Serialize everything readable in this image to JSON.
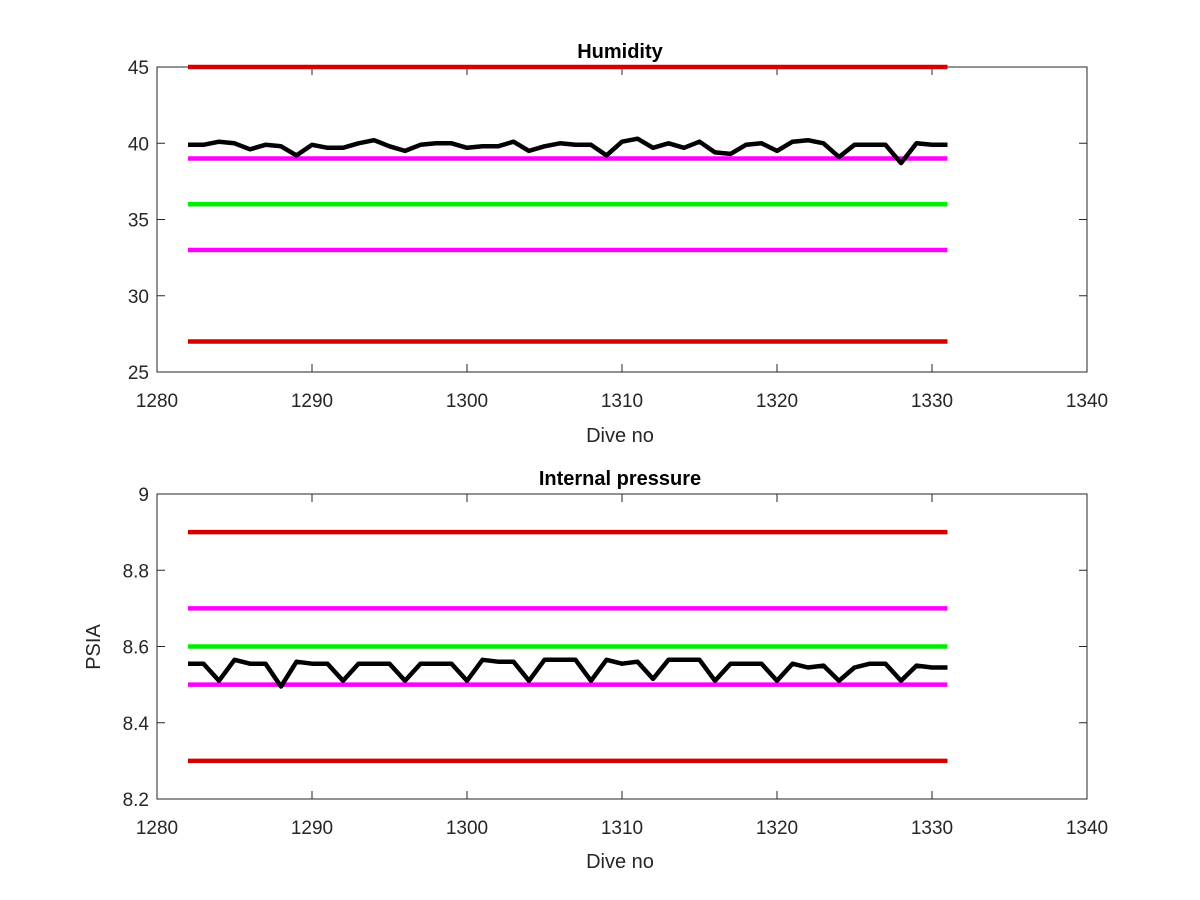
{
  "chart_data": [
    {
      "type": "line",
      "title": "Humidity",
      "xlabel": "Dive no",
      "ylabel": "",
      "xlim": [
        1280,
        1340
      ],
      "ylim": [
        25,
        45
      ],
      "xticks": [
        "1280",
        "1290",
        "1300",
        "1310",
        "1320",
        "1330",
        "1340"
      ],
      "yticks": [
        "25",
        "30",
        "35",
        "40",
        "45"
      ],
      "grid": false,
      "series": [
        {
          "color": "#d40000",
          "x": [
            1282,
            1331
          ],
          "y": [
            45,
            45
          ]
        },
        {
          "color": "#ff00ff",
          "x": [
            1282,
            1331
          ],
          "y": [
            39,
            39
          ]
        },
        {
          "color": "#00ee00",
          "x": [
            1282,
            1331
          ],
          "y": [
            36,
            36
          ]
        },
        {
          "color": "#ff00ff",
          "x": [
            1282,
            1331
          ],
          "y": [
            33,
            33
          ]
        },
        {
          "color": "#d40000",
          "x": [
            1282,
            1331
          ],
          "y": [
            27,
            27
          ]
        },
        {
          "color": "#000000",
          "x": [
            1282,
            1283,
            1284,
            1285,
            1286,
            1287,
            1288,
            1289,
            1290,
            1291,
            1292,
            1293,
            1294,
            1295,
            1296,
            1297,
            1298,
            1299,
            1300,
            1301,
            1302,
            1303,
            1304,
            1305,
            1306,
            1307,
            1308,
            1309,
            1310,
            1311,
            1312,
            1313,
            1314,
            1315,
            1316,
            1317,
            1318,
            1319,
            1320,
            1321,
            1322,
            1323,
            1324,
            1325,
            1326,
            1327,
            1328,
            1329,
            1330,
            1331
          ],
          "y": [
            39.9,
            39.9,
            40.1,
            40.0,
            39.6,
            39.9,
            39.8,
            39.2,
            39.9,
            39.7,
            39.7,
            40.0,
            40.2,
            39.8,
            39.5,
            39.9,
            40.0,
            40.0,
            39.7,
            39.8,
            39.8,
            40.1,
            39.5,
            39.8,
            40.0,
            39.9,
            39.9,
            39.2,
            40.1,
            40.3,
            39.7,
            40.0,
            39.7,
            40.1,
            39.4,
            39.3,
            39.9,
            40.0,
            39.5,
            40.1,
            40.2,
            40.0,
            39.1,
            39.9,
            39.9,
            39.9,
            38.7,
            40.0,
            39.9,
            39.9
          ]
        }
      ]
    },
    {
      "type": "line",
      "title": "Internal pressure",
      "xlabel": "Dive no",
      "ylabel": "PSIA",
      "xlim": [
        1280,
        1340
      ],
      "ylim": [
        8.2,
        9.0
      ],
      "xticks": [
        "1280",
        "1290",
        "1300",
        "1310",
        "1320",
        "1330",
        "1340"
      ],
      "yticks": [
        "8.2",
        "8.4",
        "8.6",
        "8.8",
        "9"
      ],
      "grid": false,
      "series": [
        {
          "color": "#d40000",
          "x": [
            1282,
            1331
          ],
          "y": [
            8.9,
            8.9
          ]
        },
        {
          "color": "#ff00ff",
          "x": [
            1282,
            1331
          ],
          "y": [
            8.7,
            8.7
          ]
        },
        {
          "color": "#00ee00",
          "x": [
            1282,
            1331
          ],
          "y": [
            8.6,
            8.6
          ]
        },
        {
          "color": "#ff00ff",
          "x": [
            1282,
            1331
          ],
          "y": [
            8.5,
            8.5
          ]
        },
        {
          "color": "#d40000",
          "x": [
            1282,
            1331
          ],
          "y": [
            8.3,
            8.3
          ]
        },
        {
          "color": "#000000",
          "x": [
            1282,
            1283,
            1284,
            1285,
            1286,
            1287,
            1288,
            1289,
            1290,
            1291,
            1292,
            1293,
            1294,
            1295,
            1296,
            1297,
            1298,
            1299,
            1300,
            1301,
            1302,
            1303,
            1304,
            1305,
            1306,
            1307,
            1308,
            1309,
            1310,
            1311,
            1312,
            1313,
            1314,
            1315,
            1316,
            1317,
            1318,
            1319,
            1320,
            1321,
            1322,
            1323,
            1324,
            1325,
            1326,
            1327,
            1328,
            1329,
            1330,
            1331
          ],
          "y": [
            8.555,
            8.555,
            8.51,
            8.565,
            8.555,
            8.555,
            8.495,
            8.56,
            8.555,
            8.555,
            8.51,
            8.555,
            8.555,
            8.555,
            8.51,
            8.555,
            8.555,
            8.555,
            8.51,
            8.565,
            8.56,
            8.56,
            8.51,
            8.565,
            8.565,
            8.565,
            8.51,
            8.565,
            8.555,
            8.56,
            8.515,
            8.565,
            8.565,
            8.565,
            8.51,
            8.555,
            8.555,
            8.555,
            8.51,
            8.555,
            8.545,
            8.55,
            8.51,
            8.545,
            8.555,
            8.555,
            8.51,
            8.55,
            8.545,
            8.545
          ]
        }
      ]
    }
  ]
}
